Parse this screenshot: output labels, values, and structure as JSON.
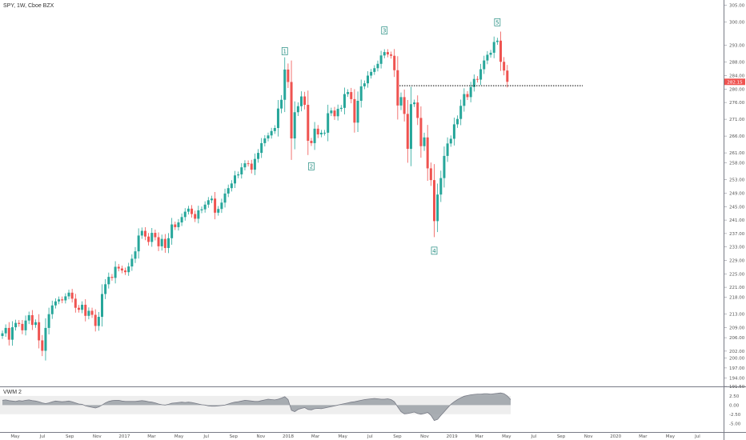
{
  "symbol": {
    "name": "SPY",
    "interval": "1W",
    "exchange": "Cboe BZX"
  },
  "header_text": "SPY, 1W, Cboe BZX",
  "indicator": {
    "name": "VWM 2"
  },
  "colors": {
    "up": "#26a69a",
    "down": "#ef5350",
    "vwm_fill": "#9aa0a6",
    "vwm_line": "#787b86",
    "price_tag": "#ef5350"
  },
  "price_tag": {
    "value": "282.15"
  },
  "horizontal_line": {
    "value": 281.0,
    "style": "dotted"
  },
  "chart_data": [
    {
      "type": "candlestick",
      "title": "",
      "y_axis_labels": [
        "305.00",
        "300.00",
        "293.00",
        "288.00",
        "284.00",
        "280.00",
        "276.00",
        "271.00",
        "266.00",
        "261.00",
        "258.00",
        "253.00",
        "249.00",
        "245.00",
        "241.00",
        "237.00",
        "233.00",
        "229.00",
        "225.00",
        "221.00",
        "218.00",
        "213.00",
        "209.00",
        "206.00",
        "202.00",
        "200.00",
        "197.00",
        "194.00",
        "191.50"
      ],
      "x_axis_labels": [
        "May",
        "Jul",
        "Sep",
        "Nov",
        "2017",
        "Mar",
        "May",
        "Jul",
        "Sep",
        "Nov",
        "2018",
        "Mar",
        "May",
        "Jul",
        "Sep",
        "Nov",
        "2019",
        "Mar",
        "May",
        "Jul",
        "Sep",
        "Nov",
        "2020",
        "Mar",
        "May",
        "Jul"
      ],
      "close_series": [
        207.3,
        208.9,
        205.4,
        209.1,
        210.4,
        210.1,
        208.2,
        211.1,
        212.7,
        209.8,
        210.6,
        205.2,
        202.1,
        208.9,
        213.0,
        215.6,
        216.8,
        217.4,
        217.1,
        218.3,
        219.4,
        217.6,
        214.9,
        214.3,
        215.8,
        212.5,
        214.0,
        212.8,
        209.5,
        212.2,
        219.0,
        221.9,
        224.1,
        223.8,
        227.1,
        226.6,
        226.0,
        225.5,
        227.2,
        229.5,
        231.7,
        236.4,
        237.8,
        236.1,
        234.5,
        237.2,
        235.9,
        233.2,
        235.4,
        232.7,
        235.6,
        239.7,
        238.9,
        240.3,
        241.9,
        243.5,
        244.4,
        242.8,
        241.4,
        243.9,
        244.2,
        245.6,
        246.9,
        247.4,
        243.2,
        244.3,
        246.2,
        248.9,
        250.5,
        251.9,
        254.3,
        254.6,
        256.7,
        257.9,
        257.8,
        256.0,
        259.2,
        261.0,
        263.9,
        265.3,
        266.2,
        267.5,
        268.4,
        274.2,
        276.8,
        285.8,
        282.1,
        265.3,
        273.1,
        274.9,
        277.8,
        275.3,
        264.6,
        263.9,
        268.2,
        266.5,
        267.0,
        267.0,
        272.8,
        273.6,
        271.9,
        274.1,
        274.4,
        278.5,
        279.1,
        277.0,
        270.0,
        276.5,
        280.8,
        281.7,
        284.0,
        285.1,
        286.2,
        287.5,
        290.0,
        291.0,
        290.3,
        289.9,
        285.6,
        275.1,
        277.6,
        272.6,
        262.2,
        275.5,
        276.0,
        271.4,
        263.0,
        265.6,
        256.4,
        252.9,
        240.7,
        248.6,
        253.5,
        260.1,
        263.8,
        265.2,
        269.5,
        271.1,
        275.0,
        278.5,
        277.6,
        280.6,
        283.0,
        282.8,
        285.9,
        288.5,
        290.2,
        290.8,
        294.0,
        294.4,
        288.1,
        285.5,
        282.15
      ],
      "y_range": [
        191.5,
        306.5
      ],
      "x_range": [
        "2016-05",
        "2020-07"
      ],
      "labels": [
        "1",
        "2",
        "3",
        "4",
        "5"
      ]
    },
    {
      "type": "area",
      "title": "VWM 2",
      "y_axis_labels": [
        "2.50",
        "0.00",
        "-2.50",
        "-5.00"
      ],
      "y_range": [
        -5.6,
        4.0
      ],
      "values": [
        1.3,
        1.4,
        1.2,
        1.1,
        1.0,
        1.2,
        1.1,
        1.3,
        1.4,
        1.2,
        1.1,
        0.9,
        0.6,
        0.4,
        0.6,
        0.9,
        1.1,
        1.0,
        0.9,
        1.0,
        1.1,
        0.9,
        0.6,
        0.3,
        0.2,
        -0.2,
        -0.4,
        -0.6,
        -0.8,
        -0.5,
        0.0,
        0.6,
        1.0,
        1.2,
        1.3,
        1.3,
        1.1,
        1.0,
        1.0,
        1.0,
        1.0,
        1.1,
        1.2,
        1.1,
        0.9,
        0.8,
        0.6,
        0.3,
        0.1,
        0.0,
        0.2,
        0.5,
        0.6,
        0.7,
        0.8,
        0.7,
        0.8,
        0.7,
        0.5,
        0.3,
        0.1,
        0.0,
        -0.2,
        -0.3,
        -0.3,
        -0.2,
        -0.1,
        0.0,
        0.3,
        0.6,
        0.8,
        0.9,
        1.1,
        1.3,
        1.2,
        1.1,
        1.0,
        1.0,
        1.2,
        1.4,
        1.6,
        1.5,
        1.4,
        1.6,
        1.9,
        2.3,
        1.5,
        -1.4,
        -1.8,
        -1.2,
        -0.9,
        -0.7,
        -1.2,
        -1.3,
        -1.0,
        -0.9,
        -1.0,
        -0.8,
        -0.6,
        -0.4,
        -0.2,
        0.0,
        0.2,
        0.4,
        0.6,
        0.8,
        0.9,
        1.1,
        1.3,
        1.5,
        1.6,
        1.7,
        1.8,
        1.7,
        1.6,
        1.6,
        1.7,
        1.5,
        0.9,
        -0.5,
        -1.8,
        -2.4,
        -2.3,
        -2.1,
        -1.9,
        -2.3,
        -2.5,
        -2.3,
        -2.0,
        -2.8,
        -4.2,
        -3.9,
        -2.8,
        -1.8,
        -0.8,
        0.2,
        0.9,
        1.5,
        2.0,
        2.4,
        2.6,
        2.8,
        2.9,
        3.0,
        3.0,
        3.1,
        3.1,
        3.0,
        3.1,
        3.2,
        3.3,
        3.1,
        2.5,
        1.5
      ]
    }
  ]
}
